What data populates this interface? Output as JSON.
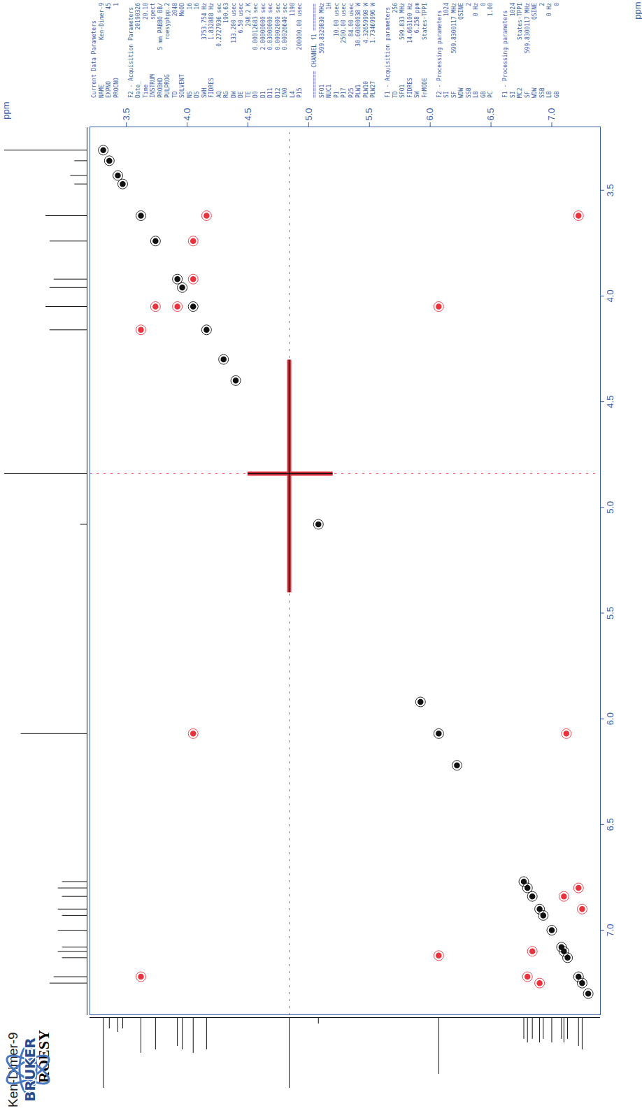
{
  "chart_data": {
    "type": "contour2d",
    "title": "Ken-Dimer-9",
    "subtitle": "ROESY",
    "x_label": "ppm",
    "y_label": "ppm",
    "xlim": [
      3.2,
      7.4
    ],
    "ylim": [
      3.2,
      7.4
    ],
    "xticks": [
      3.5,
      {
        "value": 4,
        "label": "4.0"
      },
      4.5,
      {
        "value": 5,
        "label": "5.0"
      },
      5.5,
      {
        "value": 6,
        "label": "6.0"
      },
      6.5,
      {
        "value": 7,
        "label": "7.0"
      }
    ],
    "yticks": [
      3.5,
      {
        "value": 4,
        "label": "4.0"
      },
      4.5,
      {
        "value": 5,
        "label": "5.0"
      },
      5.5,
      {
        "value": 6,
        "label": "6.0"
      },
      6.5,
      {
        "value": 7,
        "label": "7.0"
      }
    ],
    "grid": false,
    "series": [
      {
        "color": "#111111",
        "marker": "circle",
        "x": [
          3.31,
          3.36,
          3.43,
          3.47,
          3.62,
          3.74,
          3.92,
          3.96,
          4.05,
          4.16,
          4.3,
          4.4,
          5.08,
          5.92,
          6.07,
          6.22,
          6.77,
          6.8,
          6.84,
          6.9,
          6.93,
          7.0,
          7.08,
          7.1,
          7.13,
          7.22,
          7.25,
          7.3
        ],
        "y": [
          3.31,
          3.36,
          3.43,
          3.47,
          3.62,
          3.74,
          3.92,
          3.96,
          4.05,
          4.16,
          4.3,
          4.4,
          5.08,
          5.92,
          6.07,
          6.22,
          6.77,
          6.8,
          6.84,
          6.9,
          6.93,
          7.0,
          7.08,
          7.1,
          7.13,
          7.22,
          7.25,
          7.3
        ]
      },
      {
        "color": "#e8333f",
        "marker": "circle",
        "x": [
          3.62,
          4.16,
          3.74,
          4.05,
          3.92,
          4.05,
          3.62,
          7.22,
          4.05,
          6.07,
          6.07,
          7.12,
          6.8,
          7.22,
          6.9,
          7.25,
          6.84,
          7.1
        ],
        "y": [
          4.16,
          3.62,
          4.05,
          3.74,
          4.05,
          3.92,
          7.22,
          3.62,
          6.07,
          4.05,
          7.12,
          6.07,
          7.22,
          6.8,
          7.25,
          6.9,
          7.1,
          6.84
        ]
      }
    ],
    "water": {
      "x": 4.84,
      "y": 4.84,
      "x_range": [
        4.3,
        5.4
      ],
      "y_range": [
        4.5,
        5.2
      ],
      "color": "#e8333f"
    },
    "projection": {
      "color": "#111111",
      "ylim": [
        0,
        1
      ],
      "x": [
        3.31,
        3.36,
        3.43,
        3.47,
        3.62,
        3.74,
        3.92,
        3.96,
        4.05,
        4.16,
        4.84,
        5.08,
        6.07,
        6.77,
        6.8,
        6.84,
        6.9,
        6.93,
        7.0,
        7.08,
        7.1,
        7.13,
        7.22,
        7.25
      ],
      "values": [
        1.0,
        0.15,
        0.2,
        0.15,
        0.5,
        0.45,
        0.4,
        0.45,
        0.5,
        0.45,
        1.0,
        0.08,
        0.8,
        0.3,
        0.35,
        0.3,
        0.35,
        0.3,
        0.35,
        0.3,
        0.35,
        0.3,
        0.4,
        0.45
      ]
    }
  },
  "logo": "BRUKER",
  "parameters": [
    {
      "heading": "Current Data Parameters",
      "rows": [
        [
          "NAME",
          "Ken-Dimer-9"
        ],
        [
          "EXPNO",
          "45"
        ],
        [
          "PROCNO",
          "1"
        ]
      ]
    },
    {
      "heading": "F2 - Acquisition Parameters",
      "rows": [
        [
          "Date_",
          "20190326"
        ],
        [
          "Time",
          "20.10"
        ],
        [
          "INSTRUM",
          "spect"
        ],
        [
          "PROBHD",
          "5 mm PABBO BB/"
        ],
        [
          "PULPROG",
          "roesyphpp.2"
        ],
        [
          "TD",
          "2048"
        ],
        [
          "SOLVENT",
          "MeOD"
        ],
        [
          "NS",
          "16"
        ],
        [
          "DS",
          "16"
        ],
        [
          "SWH",
          "3753.754 Hz"
        ],
        [
          "FIDRES",
          "1.832888 Hz"
        ],
        [
          "AQ",
          "0.2727936 sec"
        ],
        [
          "RG",
          "190.63"
        ],
        [
          "DW",
          "133.200 usec"
        ],
        [
          "DE",
          "6.50 usec"
        ],
        [
          "TE",
          "298.2 K"
        ],
        [
          "D0",
          "0.00012683 sec"
        ],
        [
          "D1",
          "2.00000000 sec"
        ],
        [
          "D11",
          "0.03000000 sec"
        ],
        [
          "D12",
          "0.00002000 sec"
        ],
        [
          "IN0",
          "0.00026640 sec"
        ],
        [
          "L4",
          "1190"
        ],
        [
          "P15",
          "200000.00 usec"
        ]
      ]
    },
    {
      "heading": "======== CHANNEL f1 ========",
      "rows": [
        [
          "SFO1",
          "599.8329830 MHz"
        ],
        [
          "NUC1",
          "1H"
        ],
        [
          "P1",
          "10.00 usec"
        ],
        [
          "P17",
          "2500.00 usec"
        ],
        [
          "P25",
          "84.00 usec"
        ],
        [
          "PLW1",
          "30.60000038 W"
        ],
        [
          "PLW10",
          "4.32659998 W"
        ],
        [
          "PLW27",
          "1.73469996 W"
        ]
      ]
    },
    {
      "heading": "F1 - Acquisition parameters",
      "rows": [
        [
          "TD",
          "256"
        ],
        [
          "SFO1",
          "599.833 MHz"
        ],
        [
          "FIDRES",
          "14.663100 Hz"
        ],
        [
          "SW",
          "6.258 ppm"
        ],
        [
          "FnMODE",
          "States-TPPI"
        ]
      ]
    },
    {
      "heading": "F2 - Processing parameters",
      "rows": [
        [
          "SI",
          "1024"
        ],
        [
          "SF",
          "599.8300117 MHz"
        ],
        [
          "WDW",
          "QSINE"
        ],
        [
          "SSB",
          "2"
        ],
        [
          "LB",
          "0 Hz"
        ],
        [
          "GB",
          "0"
        ],
        [
          "PC",
          "1.00"
        ]
      ]
    },
    {
      "heading": "F1 - Processing parameters",
      "rows": [
        [
          "SI",
          "1024"
        ],
        [
          "MC2",
          "States-TPPI"
        ],
        [
          "SF",
          "599.8300117 MHz"
        ],
        [
          "WDW",
          "QSINE"
        ],
        [
          "SSB",
          "2"
        ],
        [
          "LB",
          "0 Hz"
        ],
        [
          "GB",
          "0"
        ]
      ]
    }
  ]
}
